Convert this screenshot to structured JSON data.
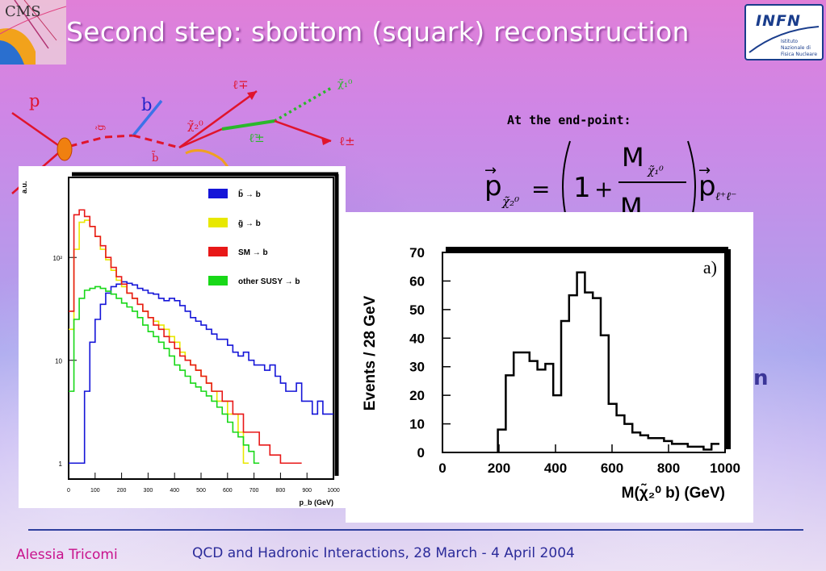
{
  "slide": {
    "title": "Second step: sbottom (squark) reconstruction",
    "endpoint_label": "At the end-point:",
    "footer_author": "Alessia Tricomi",
    "footer_conference": "QCD and Hadronic Interactions, 28 March - 4 April 2004"
  },
  "logos": {
    "cms": "CMS",
    "infn": "INFN",
    "infn_subtitle": "Istituto Nazionale di Fisica Nucleare"
  },
  "diagram": {
    "p": "p",
    "b": "b",
    "gluino": "g̃",
    "sbottom": "b̃",
    "chi2": "χ̃₂⁰",
    "chi1": "χ̃₁⁰",
    "slepton": "ℓ̃±",
    "lepton_mp": "ℓ∓",
    "lepton_pm": "ℓ±"
  },
  "chart_data": [
    {
      "type": "line",
      "xlabel": "p_b (GeV)",
      "ylabel": "a.u.",
      "xlim": [
        0,
        1000
      ],
      "yscale": "log",
      "y_ticks": [
        "1",
        "10",
        "10²"
      ],
      "x_ticks": [
        "0",
        "100",
        "200",
        "300",
        "400",
        "500",
        "600",
        "700",
        "800",
        "900",
        "1000"
      ],
      "legend_position": "top-right",
      "series": [
        {
          "name": "b̃ → b",
          "color": "#1515d8",
          "x": [
            0,
            20,
            40,
            60,
            80,
            100,
            120,
            140,
            160,
            180,
            200,
            220,
            240,
            260,
            280,
            300,
            320,
            340,
            360,
            380,
            400,
            420,
            440,
            460,
            480,
            500,
            520,
            540,
            560,
            580,
            600,
            620,
            640,
            660,
            680,
            700,
            720,
            740,
            760,
            780,
            800,
            820,
            840,
            860,
            880,
            900,
            920,
            940,
            960,
            980
          ],
          "y": [
            1,
            1,
            1,
            5,
            15,
            25,
            35,
            45,
            52,
            55,
            58,
            56,
            54,
            50,
            48,
            45,
            44,
            40,
            38,
            40,
            38,
            34,
            30,
            26,
            24,
            22,
            20,
            18,
            16,
            16,
            14,
            12,
            11,
            12,
            10,
            9,
            9,
            8,
            9,
            7,
            6,
            5,
            5,
            6,
            4,
            4,
            3,
            4,
            3,
            3
          ]
        },
        {
          "name": "g̃ → b",
          "color": "#e8e800",
          "x": [
            0,
            20,
            40,
            60,
            80,
            100,
            120,
            140,
            160,
            180,
            200,
            220,
            240,
            260,
            280,
            300,
            320,
            340,
            360,
            380,
            400,
            420,
            440,
            460,
            480,
            500,
            520,
            540,
            560,
            580,
            600,
            620,
            640,
            660
          ],
          "y": [
            20,
            120,
            220,
            230,
            200,
            160,
            120,
            95,
            75,
            60,
            52,
            45,
            40,
            35,
            30,
            26,
            24,
            22,
            20,
            17,
            15,
            12,
            10,
            9,
            8,
            7,
            6,
            5,
            4,
            4,
            3,
            3,
            2,
            1
          ]
        },
        {
          "name": "SM → b",
          "color": "#e81818",
          "x": [
            0,
            20,
            40,
            60,
            80,
            100,
            120,
            140,
            160,
            180,
            200,
            220,
            240,
            260,
            280,
            300,
            320,
            340,
            360,
            380,
            400,
            420,
            440,
            460,
            480,
            500,
            520,
            540,
            560,
            580,
            600,
            620,
            640,
            660,
            680,
            700,
            720,
            740,
            760,
            780,
            800,
            820,
            840,
            860
          ],
          "y": [
            30,
            260,
            290,
            250,
            200,
            160,
            130,
            100,
            80,
            65,
            55,
            45,
            40,
            35,
            30,
            26,
            22,
            20,
            17,
            15,
            13,
            11,
            10,
            9,
            8,
            7,
            6,
            5,
            5,
            4,
            4,
            3,
            3,
            2,
            2,
            2,
            1.5,
            1.5,
            1.2,
            1.2,
            1,
            1,
            1,
            1
          ]
        },
        {
          "name": "other SUSY → b",
          "color": "#18d818",
          "x": [
            0,
            20,
            40,
            60,
            80,
            100,
            120,
            140,
            160,
            180,
            200,
            220,
            240,
            260,
            280,
            300,
            320,
            340,
            360,
            380,
            400,
            420,
            440,
            460,
            480,
            500,
            520,
            540,
            560,
            580,
            600,
            620,
            640,
            660,
            680,
            700
          ],
          "y": [
            5,
            25,
            40,
            48,
            50,
            52,
            50,
            47,
            44,
            40,
            36,
            33,
            30,
            26,
            22,
            19,
            17,
            15,
            13,
            11,
            9,
            8,
            7,
            6,
            5.5,
            5,
            4.5,
            4,
            3.5,
            3,
            2.5,
            2,
            1.8,
            1.5,
            1.3,
            1
          ]
        }
      ]
    },
    {
      "type": "line",
      "annotation": "a)",
      "xlabel": "M(χ̃₂⁰ b) (GeV)",
      "ylabel": "Events / 28 GeV",
      "xlim": [
        0,
        1000
      ],
      "ylim": [
        0,
        70
      ],
      "x_ticks": [
        "0",
        "200",
        "400",
        "600",
        "800",
        "1000"
      ],
      "y_ticks": [
        "0",
        "10",
        "20",
        "30",
        "40",
        "50",
        "60",
        "70"
      ],
      "series": [
        {
          "name": "",
          "bin_edges": [
            196,
            224,
            252,
            280,
            308,
            336,
            364,
            392,
            420,
            448,
            476,
            504,
            532,
            560,
            588,
            616,
            644,
            672,
            700,
            728,
            756,
            784,
            812,
            840,
            868,
            896,
            924,
            952,
            980
          ],
          "values": [
            8,
            27,
            35,
            35,
            32,
            29,
            31,
            20,
            46,
            55,
            63,
            56,
            54,
            41,
            17,
            13,
            10,
            7,
            6,
            5,
            5,
            4,
            3,
            3,
            2,
            2,
            1,
            3
          ]
        }
      ]
    }
  ]
}
